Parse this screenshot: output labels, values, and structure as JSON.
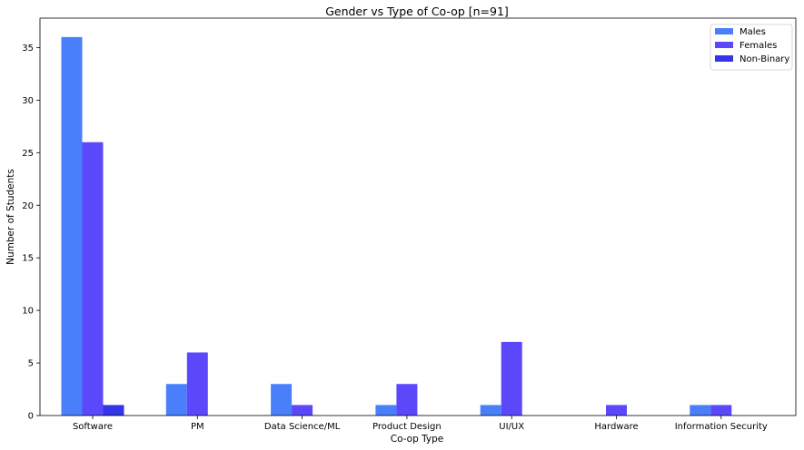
{
  "chart_data": {
    "type": "bar",
    "title": "Gender vs Type of Co-op [n=91]",
    "xlabel": "Co-op Type",
    "ylabel": "Number of Students",
    "categories": [
      "Software",
      "PM",
      "Data Science/ML",
      "Product Design",
      "UI/UX",
      "Hardware",
      "Information Security"
    ],
    "series": [
      {
        "name": "Males",
        "color": "#4a7ffc",
        "values": [
          36,
          3,
          3,
          1,
          1,
          0,
          1
        ]
      },
      {
        "name": "Females",
        "color": "#5b48fb",
        "values": [
          26,
          6,
          1,
          3,
          7,
          1,
          1
        ]
      },
      {
        "name": "Non-Binary",
        "color": "#3434e8",
        "values": [
          1,
          0,
          0,
          0,
          0,
          0,
          0
        ]
      }
    ],
    "ylim": [
      0,
      37.8
    ],
    "yticks": [
      0,
      5,
      10,
      15,
      20,
      25,
      30,
      35
    ],
    "grid": false,
    "legend_position": "top-right"
  }
}
